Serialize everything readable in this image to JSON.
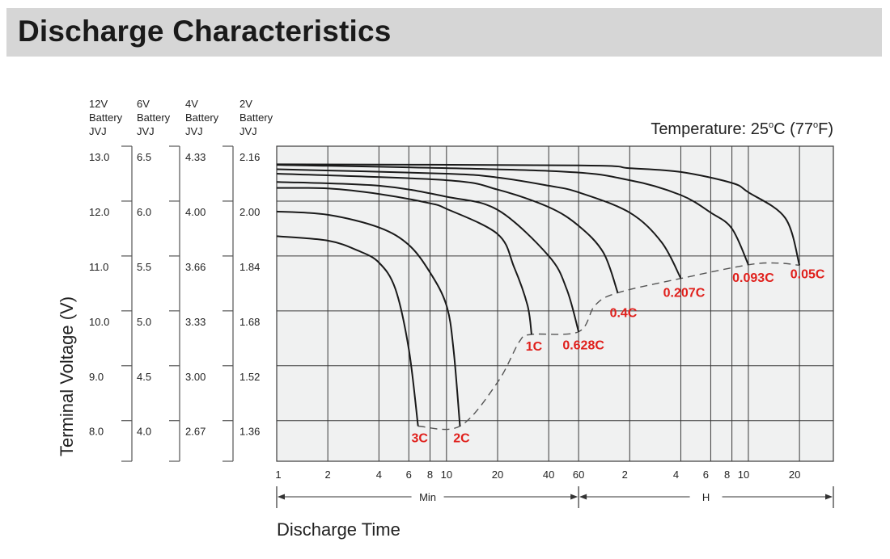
{
  "header": {
    "title": "Discharge Characteristics"
  },
  "temperature": {
    "prefix": "Temperature: 25",
    "deg1": "o",
    "mid": "C (77",
    "deg2": "o",
    "suffix": "F)"
  },
  "chart_data": {
    "type": "line",
    "title": "Discharge Characteristics",
    "xlabel": "Discharge Time",
    "ylabel": "Terminal Voltage (V)",
    "x_scale": "log",
    "x_unit": "minutes",
    "xlim": [
      1,
      1900
    ],
    "ylim": [
      7.26,
      13.0
    ],
    "grid": true,
    "x_ticks_min": [
      "1",
      "2",
      "4",
      "6",
      "8",
      "10",
      "20",
      "40",
      "60"
    ],
    "x_ticks_min_values": [
      1,
      2,
      4,
      6,
      8,
      10,
      20,
      40,
      60
    ],
    "x_ticks_h": [
      "2",
      "4",
      "6",
      "8",
      "10",
      "20"
    ],
    "x_ticks_h_values": [
      120,
      240,
      360,
      480,
      600,
      1200
    ],
    "x_ranges": [
      {
        "label": "Min",
        "from": 1,
        "to": 60
      },
      {
        "label": "H",
        "from": 60,
        "to": 1900
      }
    ],
    "voltage_scales": [
      {
        "header": [
          "12V",
          "Battery",
          "JVJ"
        ],
        "ticks": [
          "13.0",
          "12.0",
          "11.0",
          "10.0",
          "9.0",
          "8.0"
        ]
      },
      {
        "header": [
          "6V",
          "Battery",
          "JVJ"
        ],
        "ticks": [
          "6.5",
          "6.0",
          "5.5",
          "5.0",
          "4.5",
          "4.0"
        ]
      },
      {
        "header": [
          "4V",
          "Battery",
          "JVJ"
        ],
        "ticks": [
          "4.33",
          "4.00",
          "3.66",
          "3.33",
          "3.00",
          "2.67"
        ]
      },
      {
        "header": [
          "2V",
          "Battery",
          "JVJ"
        ],
        "ticks": [
          "2.16",
          "2.00",
          "1.84",
          "1.68",
          "1.52",
          "1.36"
        ]
      }
    ],
    "voltage_tick_values_12v": [
      13,
      12,
      11,
      10,
      9,
      8
    ],
    "series": [
      {
        "name": "3C",
        "points": [
          [
            1,
            11.36
          ],
          [
            2,
            11.28
          ],
          [
            3,
            11.1
          ],
          [
            4,
            10.88
          ],
          [
            5,
            10.4
          ],
          [
            6,
            9.3
          ],
          [
            6.8,
            7.9
          ]
        ]
      },
      {
        "name": "2C",
        "points": [
          [
            1,
            11.81
          ],
          [
            2,
            11.75
          ],
          [
            4,
            11.52
          ],
          [
            6,
            11.2
          ],
          [
            8,
            10.7
          ],
          [
            10,
            10.1
          ],
          [
            11,
            9.3
          ],
          [
            12,
            7.9
          ]
        ]
      },
      {
        "name": "1C",
        "points": [
          [
            1,
            12.24
          ],
          [
            2,
            12.23
          ],
          [
            4,
            12.13
          ],
          [
            8,
            11.96
          ],
          [
            10,
            11.86
          ],
          [
            20,
            11.4
          ],
          [
            25,
            10.8
          ],
          [
            30,
            10.1
          ],
          [
            31.7,
            9.57
          ]
        ]
      },
      {
        "name": "0.628C",
        "points": [
          [
            1,
            12.35
          ],
          [
            4,
            12.28
          ],
          [
            10,
            12.08
          ],
          [
            20,
            11.84
          ],
          [
            40,
            11.0
          ],
          [
            51,
            10.4
          ],
          [
            60,
            9.62
          ]
        ]
      },
      {
        "name": "0.4C",
        "points": [
          [
            1,
            12.5
          ],
          [
            10,
            12.38
          ],
          [
            20,
            12.21
          ],
          [
            40,
            11.89
          ],
          [
            60,
            11.55
          ],
          [
            84,
            11.06
          ],
          [
            102,
            10.33
          ]
        ]
      },
      {
        "name": "0.207C",
        "points": [
          [
            1,
            12.58
          ],
          [
            10,
            12.5
          ],
          [
            20,
            12.43
          ],
          [
            40,
            12.28
          ],
          [
            60,
            12.16
          ],
          [
            120,
            11.79
          ],
          [
            185,
            11.25
          ],
          [
            240,
            10.59
          ]
        ]
      },
      {
        "name": "0.093C",
        "points": [
          [
            1,
            12.66
          ],
          [
            40,
            12.55
          ],
          [
            120,
            12.38
          ],
          [
            240,
            12.11
          ],
          [
            360,
            11.79
          ],
          [
            480,
            11.5
          ],
          [
            600,
            10.84
          ]
        ]
      },
      {
        "name": "0.05C",
        "points": [
          [
            1,
            12.67
          ],
          [
            60,
            12.65
          ],
          [
            120,
            12.6
          ],
          [
            240,
            12.53
          ],
          [
            480,
            12.33
          ],
          [
            600,
            12.16
          ],
          [
            990,
            11.69
          ],
          [
            1200,
            10.83
          ]
        ]
      }
    ],
    "cutoff_line": {
      "style": "dashed",
      "points": [
        [
          6.8,
          7.9
        ],
        [
          12,
          7.9
        ],
        [
          20,
          8.7
        ],
        [
          27,
          9.45
        ],
        [
          31.7,
          9.57
        ],
        [
          60,
          9.62
        ],
        [
          75,
          10.1
        ],
        [
          102,
          10.33
        ],
        [
          240,
          10.59
        ],
        [
          600,
          10.84
        ],
        [
          900,
          10.87
        ],
        [
          1200,
          10.83
        ]
      ]
    },
    "colors": {
      "curve": "#1a1a1a",
      "label": "#e0201c",
      "grid": "#3a3a3a",
      "plot_bg": "#f0f1f1",
      "cutoff": "#555555",
      "title_band": "#d6d6d6"
    }
  }
}
